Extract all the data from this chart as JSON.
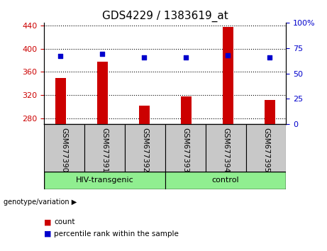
{
  "title": "GDS4229 / 1383619_at",
  "categories": [
    "GSM677390",
    "GSM677391",
    "GSM677392",
    "GSM677393",
    "GSM677394",
    "GSM677395"
  ],
  "bar_values": [
    350,
    378,
    302,
    318,
    438,
    312
  ],
  "dot_values": [
    67,
    69,
    66,
    66,
    68,
    66
  ],
  "bar_color": "#cc0000",
  "dot_color": "#0000cc",
  "ylim_left": [
    270,
    445
  ],
  "yticks_left": [
    280,
    320,
    360,
    400,
    440
  ],
  "ylim_right": [
    0,
    100
  ],
  "yticks_right": [
    0,
    25,
    50,
    75,
    100
  ],
  "yticklabels_right": [
    "0",
    "25",
    "50",
    "75",
    "100%"
  ],
  "group1_label": "HIV-transgenic",
  "group2_label": "control",
  "group1_indices": [
    0,
    1,
    2
  ],
  "group2_indices": [
    3,
    4,
    5
  ],
  "genotype_label": "genotype/variation",
  "legend_bar": "count",
  "legend_dot": "percentile rank within the sample",
  "bar_color_hex": "#cc0000",
  "dot_color_hex": "#0000cc",
  "bg_xticklabels": "#c8c8c8",
  "bg_group": "#90ee90",
  "title_fontsize": 11,
  "bar_width": 0.25
}
